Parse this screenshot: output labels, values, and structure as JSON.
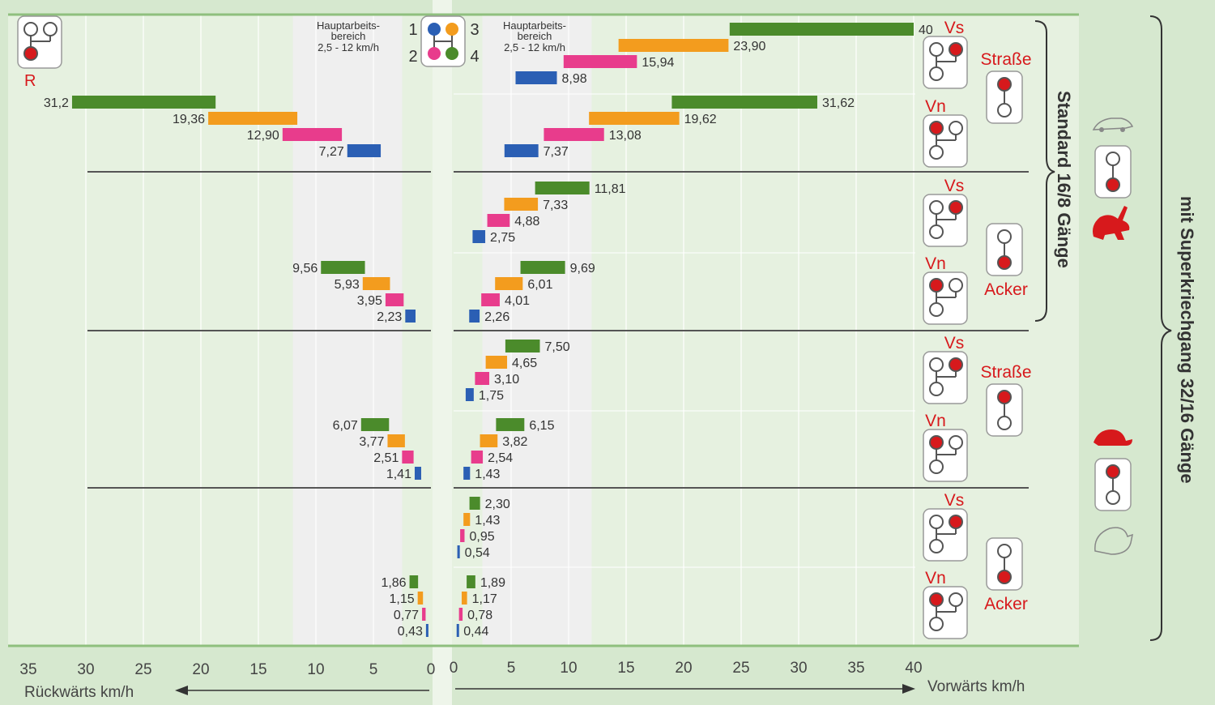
{
  "chart_data": {
    "type": "bar",
    "title": "",
    "legend": {
      "gears": [
        "1",
        "2",
        "3",
        "4"
      ],
      "work_range_label_left": [
        "Hauptarbeits-",
        "bereich",
        "2,5 - 12 km/h"
      ],
      "work_range_label_right": [
        "Hauptarbeits-",
        "bereich",
        "2,5 - 12 km/h"
      ],
      "work_range": [
        2.5,
        12
      ]
    },
    "colors": {
      "1": "#2b5fb4",
      "2": "#e83c8c",
      "3": "#f39c1e",
      "4": "#4b8b2b",
      "accent": "#d7191c"
    },
    "reverse_marker": "R",
    "axes": {
      "left": {
        "label": "Rückwärts km/h",
        "ticks": [
          "35",
          "30",
          "25",
          "20",
          "15",
          "10",
          "5",
          "0"
        ],
        "range": [
          0,
          35
        ]
      },
      "right": {
        "label": "Vorwärts km/h",
        "ticks": [
          "0",
          "5",
          "10",
          "15",
          "20",
          "25",
          "30",
          "35",
          "40"
        ],
        "range": [
          0,
          40
        ]
      }
    },
    "groups": [
      {
        "range": "Straße",
        "forward": [
          {
            "label": "Vs",
            "values": [
              8.98,
              15.94,
              23.9,
              40
            ],
            "texts": [
              "8,98",
              "15,94",
              "23,90",
              "40"
            ]
          },
          {
            "label": "Vn",
            "values": [
              7.37,
              13.08,
              19.62,
              31.62
            ],
            "texts": [
              "7,37",
              "13,08",
              "19,62",
              "31,62"
            ]
          }
        ],
        "reverse": {
          "values": [
            7.27,
            12.9,
            19.36,
            31.2
          ],
          "texts": [
            "7,27",
            "12,90",
            "19,36",
            "31,2"
          ]
        }
      },
      {
        "range": "Acker",
        "forward": [
          {
            "label": "Vs",
            "values": [
              2.75,
              4.88,
              7.33,
              11.81
            ],
            "texts": [
              "2,75",
              "4,88",
              "7,33",
              "11,81"
            ]
          },
          {
            "label": "Vn",
            "values": [
              2.26,
              4.01,
              6.01,
              9.69
            ],
            "texts": [
              "2,26",
              "4,01",
              "6,01",
              "9,69"
            ]
          }
        ],
        "reverse": {
          "values": [
            2.23,
            3.95,
            5.93,
            9.56
          ],
          "texts": [
            "2,23",
            "3,95",
            "5,93",
            "9,56"
          ]
        }
      },
      {
        "range": "Straße",
        "forward": [
          {
            "label": "Vs",
            "values": [
              1.75,
              3.1,
              4.65,
              7.5
            ],
            "texts": [
              "1,75",
              "3,10",
              "4,65",
              "7,50"
            ]
          },
          {
            "label": "Vn",
            "values": [
              1.43,
              2.54,
              3.82,
              6.15
            ],
            "texts": [
              "1,43",
              "2,54",
              "3,82",
              "6,15"
            ]
          }
        ],
        "reverse": {
          "values": [
            1.41,
            2.51,
            3.77,
            6.07
          ],
          "texts": [
            "1,41",
            "2,51",
            "3,77",
            "6,07"
          ]
        }
      },
      {
        "range": "Acker",
        "forward": [
          {
            "label": "Vs",
            "values": [
              0.54,
              0.95,
              1.43,
              2.3
            ],
            "texts": [
              "0,54",
              "0,95",
              "1,43",
              "2,30"
            ]
          },
          {
            "label": "Vn",
            "values": [
              0.44,
              0.78,
              1.17,
              1.89
            ],
            "texts": [
              "0,44",
              "0,78",
              "1,17",
              "1,89"
            ]
          }
        ],
        "reverse": {
          "values": [
            0.43,
            0.77,
            1.15,
            1.86
          ],
          "texts": [
            "0,43",
            "0,77",
            "1,15",
            "1,86"
          ]
        }
      }
    ],
    "brackets": [
      {
        "label": "Standard 16/8 Gänge",
        "covers_groups": [
          1,
          2
        ]
      },
      {
        "label": "mit Superkriechgang 32/16 Gänge",
        "covers_groups": [
          1,
          2,
          3,
          4
        ]
      }
    ],
    "icons": {
      "car": "car-icon",
      "rabbit": "rabbit-icon",
      "turtle": "turtle-icon",
      "snail": "snail-icon",
      "shifter": "shifter-icon",
      "lever": "lever-icon"
    }
  }
}
